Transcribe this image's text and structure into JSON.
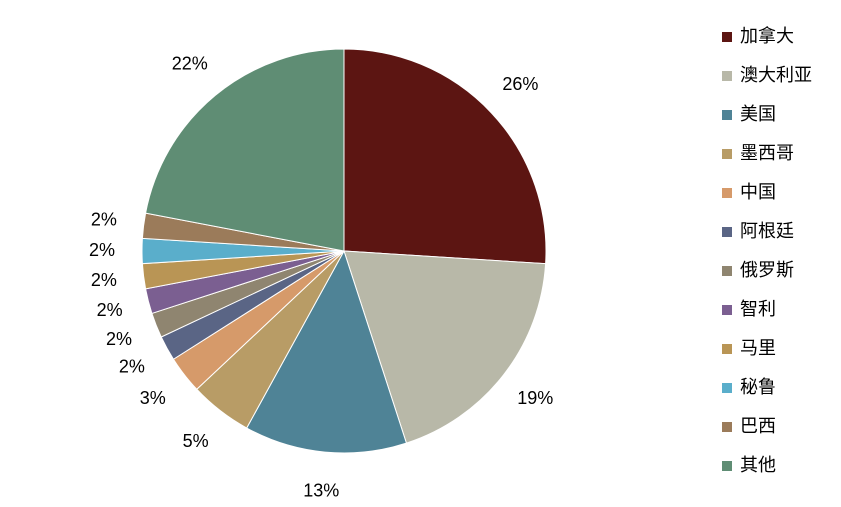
{
  "chart_data": {
    "type": "pie",
    "categories": [
      "加拿大",
      "澳大利亚",
      "美国",
      "墨西哥",
      "中国",
      "阿根廷",
      "俄罗斯",
      "智利",
      "马里",
      "秘鲁",
      "巴西",
      "其他"
    ],
    "values": [
      26,
      19,
      13,
      5,
      3,
      2,
      2,
      2,
      2,
      2,
      2,
      22
    ],
    "value_labels": [
      "26%",
      "19%",
      "13%",
      "5%",
      "3%",
      "2%",
      "2%",
      "2%",
      "2%",
      "2%",
      "2%",
      "22%"
    ],
    "colors": [
      "#5c1512",
      "#b8b8a8",
      "#4f8396",
      "#b89c66",
      "#d69a6a",
      "#5a6585",
      "#8f8570",
      "#7b5f91",
      "#b99555",
      "#5aaecb",
      "#9b7b5a",
      "#5f8d74"
    ],
    "legend": "right"
  }
}
